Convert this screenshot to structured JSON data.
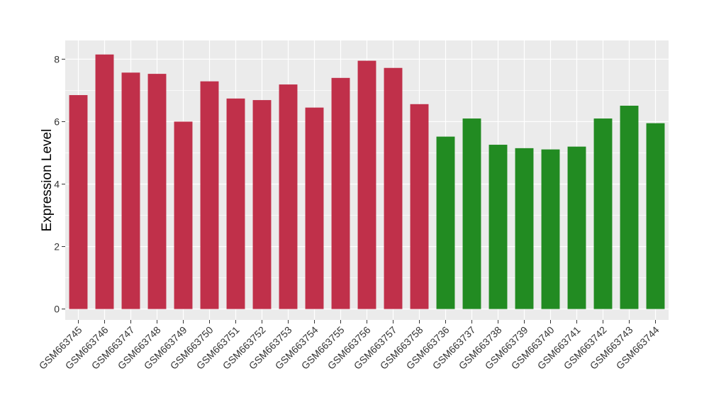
{
  "chart_data": {
    "type": "bar",
    "title": "",
    "xlabel": "",
    "ylabel": "Expression Level",
    "ylim": [
      -0.35,
      8.6
    ],
    "yticks": [
      0,
      2,
      4,
      6,
      8
    ],
    "grid": true,
    "legend": "none",
    "colors": {
      "group1": "#C0304A",
      "group2": "#228B22",
      "panel": "#EBEBEB",
      "gridline": "#FFFFFF"
    },
    "categories": [
      "GSM663745",
      "GSM663746",
      "GSM663747",
      "GSM663748",
      "GSM663749",
      "GSM663750",
      "GSM663751",
      "GSM663752",
      "GSM663753",
      "GSM663754",
      "GSM663755",
      "GSM663756",
      "GSM663757",
      "GSM663758",
      "GSM663736",
      "GSM663737",
      "GSM663738",
      "GSM663739",
      "GSM663740",
      "GSM663741",
      "GSM663742",
      "GSM663743",
      "GSM663744"
    ],
    "values": [
      6.85,
      8.15,
      7.57,
      7.53,
      6.0,
      7.29,
      6.74,
      6.69,
      7.19,
      6.45,
      7.4,
      7.95,
      7.72,
      6.56,
      5.52,
      6.1,
      5.26,
      5.15,
      5.11,
      5.2,
      6.1,
      6.51,
      5.95
    ],
    "group": [
      1,
      1,
      1,
      1,
      1,
      1,
      1,
      1,
      1,
      1,
      1,
      1,
      1,
      1,
      2,
      2,
      2,
      2,
      2,
      2,
      2,
      2,
      2
    ]
  }
}
